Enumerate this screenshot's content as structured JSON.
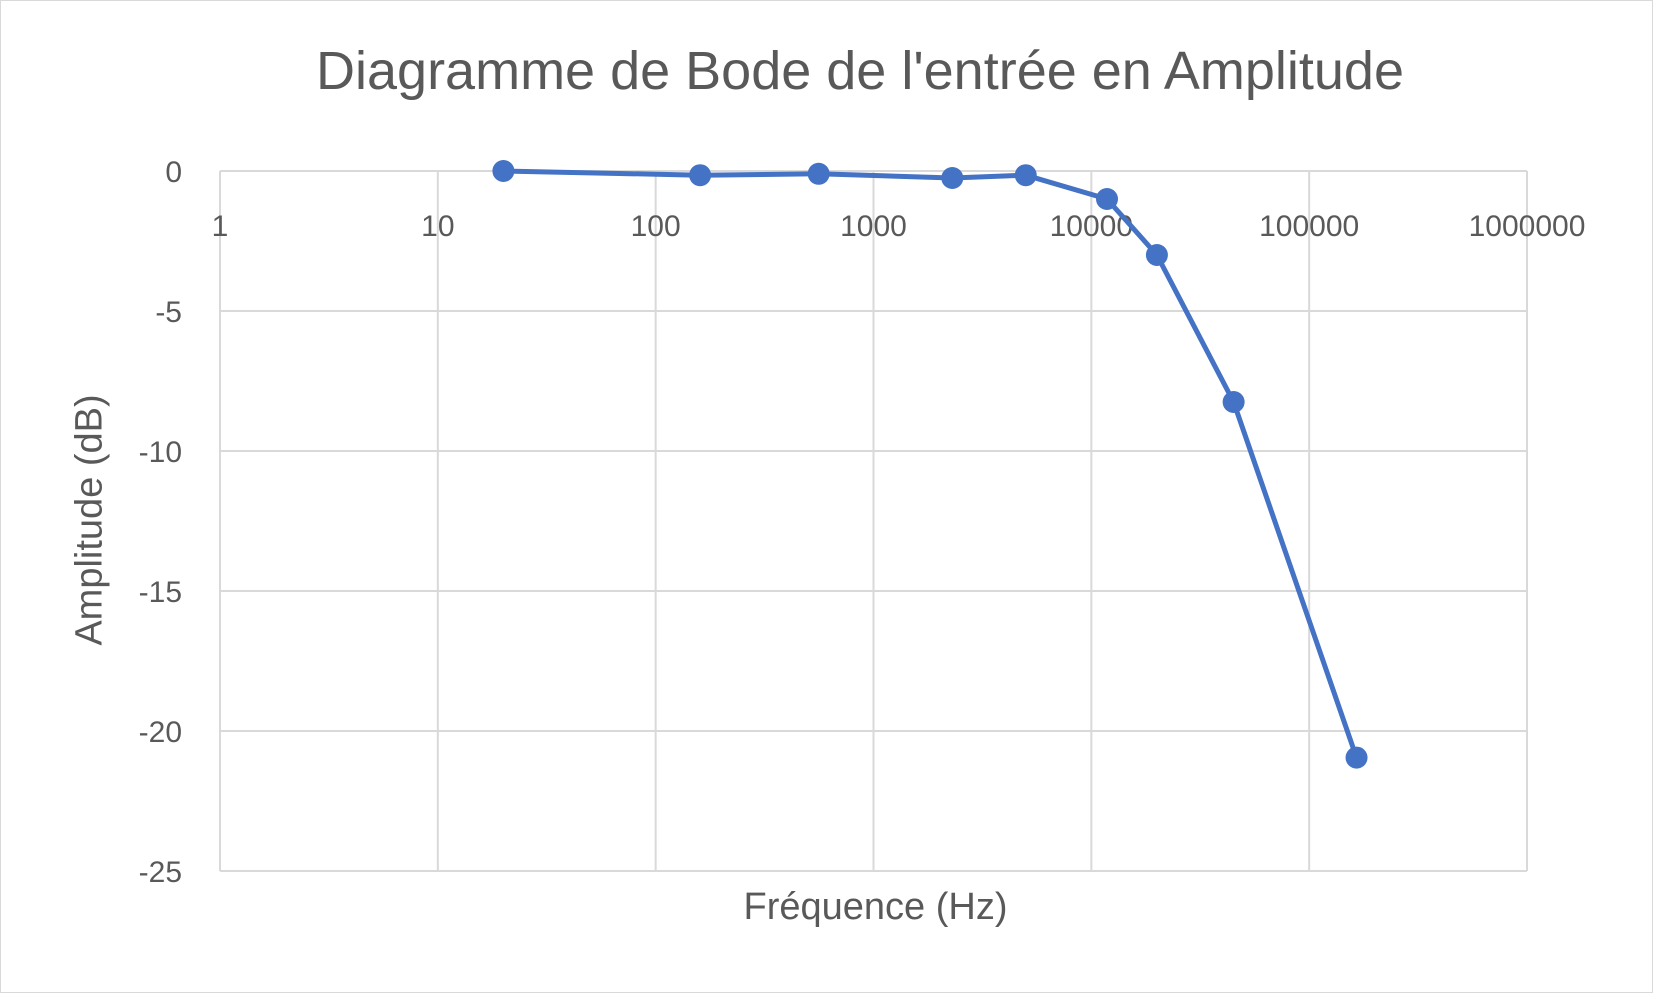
{
  "chart_data": {
    "type": "line",
    "title": "Diagramme de Bode de l'entrée en Amplitude",
    "xlabel": "Fréquence (Hz)",
    "ylabel": "Amplitude (dB)",
    "x_scale": "log",
    "xlim": [
      1,
      1000000
    ],
    "ylim": [
      -25,
      0
    ],
    "x_ticks": [
      "1",
      "10",
      "100",
      "1000",
      "10000",
      "100000",
      "1000000"
    ],
    "y_ticks": [
      "0",
      "-5",
      "-10",
      "-15",
      "-20",
      "-25"
    ],
    "grid": true,
    "legend": "none",
    "series": [
      {
        "color": "#4472c4",
        "x": [
          20,
          160,
          560,
          2300,
          5000,
          11800,
          20000,
          45000,
          165000
        ],
        "y": [
          0,
          -0.15,
          -0.1,
          -0.25,
          -0.15,
          -1.0,
          -3.0,
          -8.25,
          -20.95
        ]
      }
    ]
  }
}
